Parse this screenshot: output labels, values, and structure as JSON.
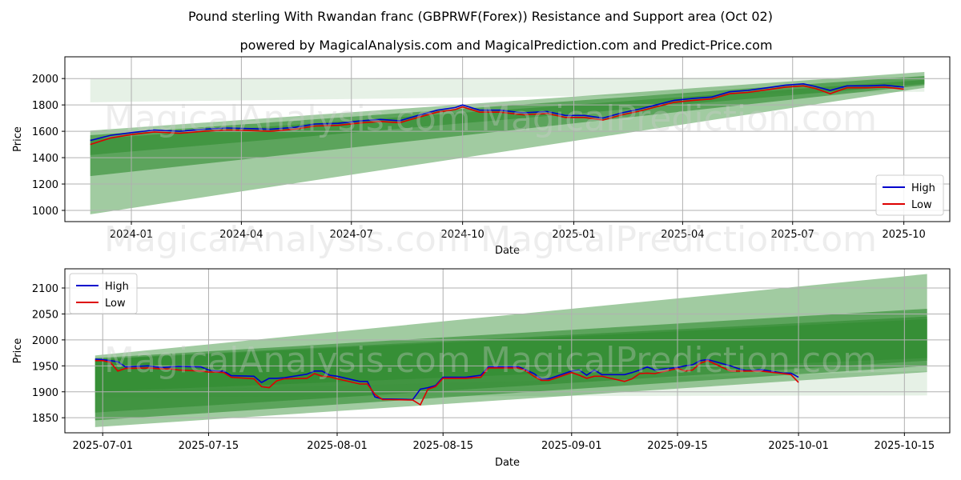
{
  "figure": {
    "title": "Pound sterling With Rwandan franc (GBPRWF(Forex)) Resistance and Support area (Oct 02)",
    "subtitle": "powered by MagicalAnalysis.com and MagicalPrediction.com and Predict-Price.com",
    "watermarks": [
      "MagicalAnalysis.com",
      "MagicalPrediction.com"
    ]
  },
  "colors": {
    "high": "#0000cc",
    "low": "#dd0000",
    "band": "#2e8b2e",
    "grid": "#b0b0b0"
  },
  "chart_data": [
    {
      "type": "line",
      "name": "overview",
      "xlabel": "Date",
      "ylabel": "Price",
      "xlim": [
        "2023-11-07",
        "2025-11-08"
      ],
      "ylim": [
        915,
        2165
      ],
      "xticks": [
        {
          "date": "2024-01-01",
          "label": "2024-01"
        },
        {
          "date": "2024-04-01",
          "label": "2024-04"
        },
        {
          "date": "2024-07-01",
          "label": "2024-07"
        },
        {
          "date": "2024-10-01",
          "label": "2024-10"
        },
        {
          "date": "2025-01-01",
          "label": "2025-01"
        },
        {
          "date": "2025-04-01",
          "label": "2025-04"
        },
        {
          "date": "2025-07-01",
          "label": "2025-07"
        },
        {
          "date": "2025-10-01",
          "label": "2025-10"
        }
      ],
      "yticks": [
        1000,
        1200,
        1400,
        1600,
        1800,
        2000
      ],
      "legend": {
        "position": "lower-right",
        "entries": [
          "High",
          "Low"
        ]
      },
      "bands": [
        {
          "x": [
            "2023-11-28",
            "2025-10-18"
          ],
          "upper": [
            1605,
            2050
          ],
          "lower": [
            970,
            1930
          ],
          "opacity": 0.45
        },
        {
          "x": [
            "2023-11-28",
            "2025-10-18"
          ],
          "upper": [
            1570,
            2020
          ],
          "lower": [
            1260,
            1950
          ],
          "opacity": 0.6
        },
        {
          "x": [
            "2023-11-28",
            "2025-10-18"
          ],
          "upper": [
            1540,
            1990
          ],
          "lower": [
            1420,
            1960
          ],
          "opacity": 0.55
        },
        {
          "x": [
            "2023-11-28",
            "2025-10-18"
          ],
          "upper": [
            2000,
            2010
          ],
          "lower": [
            1820,
            1900
          ],
          "opacity": 0.12
        }
      ],
      "series": [
        {
          "name": "High",
          "x": [
            "2023-11-28",
            "2023-12-15",
            "2024-01-01",
            "2024-01-20",
            "2024-02-10",
            "2024-03-01",
            "2024-03-20",
            "2024-04-10",
            "2024-04-25",
            "2024-05-15",
            "2024-06-01",
            "2024-06-20",
            "2024-07-10",
            "2024-07-25",
            "2024-08-10",
            "2024-08-25",
            "2024-09-10",
            "2024-09-25",
            "2024-10-01",
            "2024-10-15",
            "2024-11-01",
            "2024-11-20",
            "2024-12-10",
            "2024-12-25",
            "2025-01-10",
            "2025-01-25",
            "2025-02-10",
            "2025-02-25",
            "2025-03-10",
            "2025-03-25",
            "2025-04-10",
            "2025-04-25",
            "2025-05-10",
            "2025-05-25",
            "2025-06-10",
            "2025-06-25",
            "2025-07-10",
            "2025-07-20",
            "2025-08-01",
            "2025-08-15",
            "2025-09-01",
            "2025-09-15",
            "2025-10-01"
          ],
          "y": [
            1530,
            1570,
            1590,
            1610,
            1600,
            1615,
            1625,
            1620,
            1615,
            1630,
            1655,
            1660,
            1680,
            1690,
            1680,
            1720,
            1760,
            1780,
            1800,
            1760,
            1760,
            1740,
            1750,
            1720,
            1720,
            1700,
            1740,
            1770,
            1800,
            1835,
            1850,
            1860,
            1900,
            1910,
            1930,
            1950,
            1960,
            1940,
            1910,
            1945,
            1945,
            1950,
            1935
          ]
        },
        {
          "name": "Low",
          "x": [
            "2023-11-28",
            "2023-12-15",
            "2024-01-01",
            "2024-01-20",
            "2024-02-10",
            "2024-03-01",
            "2024-03-20",
            "2024-04-10",
            "2024-04-25",
            "2024-05-15",
            "2024-06-01",
            "2024-06-20",
            "2024-07-10",
            "2024-07-25",
            "2024-08-10",
            "2024-08-25",
            "2024-09-10",
            "2024-09-25",
            "2024-10-01",
            "2024-10-15",
            "2024-11-01",
            "2024-11-20",
            "2024-12-10",
            "2024-12-25",
            "2025-01-10",
            "2025-01-25",
            "2025-02-10",
            "2025-02-25",
            "2025-03-10",
            "2025-03-25",
            "2025-04-10",
            "2025-04-25",
            "2025-05-10",
            "2025-05-25",
            "2025-06-10",
            "2025-06-25",
            "2025-07-10",
            "2025-07-20",
            "2025-08-01",
            "2025-08-15",
            "2025-09-01",
            "2025-09-15",
            "2025-10-01"
          ],
          "y": [
            1500,
            1550,
            1575,
            1595,
            1585,
            1600,
            1610,
            1605,
            1600,
            1615,
            1640,
            1645,
            1665,
            1675,
            1665,
            1705,
            1745,
            1765,
            1785,
            1745,
            1745,
            1725,
            1735,
            1705,
            1705,
            1685,
            1725,
            1755,
            1785,
            1820,
            1835,
            1845,
            1885,
            1895,
            1915,
            1935,
            1945,
            1925,
            1885,
            1930,
            1930,
            1935,
            1920
          ]
        }
      ]
    },
    {
      "type": "line",
      "name": "detail",
      "xlabel": "Date",
      "ylabel": "Price",
      "xlim": [
        "2025-06-26",
        "2025-10-21"
      ],
      "ylim": [
        1821,
        2137
      ],
      "xticks": [
        {
          "date": "2025-07-01",
          "label": "2025-07-01"
        },
        {
          "date": "2025-07-15",
          "label": "2025-07-15"
        },
        {
          "date": "2025-08-01",
          "label": "2025-08-01"
        },
        {
          "date": "2025-08-15",
          "label": "2025-08-15"
        },
        {
          "date": "2025-09-01",
          "label": "2025-09-01"
        },
        {
          "date": "2025-09-15",
          "label": "2025-09-15"
        },
        {
          "date": "2025-10-01",
          "label": "2025-10-01"
        },
        {
          "date": "2025-10-15",
          "label": "2025-10-15"
        }
      ],
      "yticks": [
        1850,
        1900,
        1950,
        2000,
        2050,
        2100
      ],
      "legend": {
        "position": "upper-left",
        "entries": [
          "High",
          "Low"
        ]
      },
      "bands": [
        {
          "x": [
            "2025-06-30",
            "2025-10-18"
          ],
          "upper": [
            1970,
            2127
          ],
          "lower": [
            1832,
            1938
          ],
          "opacity": 0.45
        },
        {
          "x": [
            "2025-06-30",
            "2025-10-18"
          ],
          "upper": [
            1965,
            2060
          ],
          "lower": [
            1845,
            1950
          ],
          "opacity": 0.6
        },
        {
          "x": [
            "2025-06-30",
            "2025-10-18"
          ],
          "upper": [
            1963,
            2045
          ],
          "lower": [
            1860,
            1960
          ],
          "opacity": 0.6
        },
        {
          "x": [
            "2025-06-30",
            "2025-10-18"
          ],
          "upper": [
            1962,
            2040
          ],
          "lower": [
            1900,
            1965
          ],
          "opacity": 0.55
        },
        {
          "x": [
            "2025-06-30",
            "2025-10-18"
          ],
          "upper": [
            1900,
            1940
          ],
          "lower": [
            1890,
            1893
          ],
          "opacity": 0.12
        }
      ],
      "series": [
        {
          "name": "High",
          "x": [
            "2025-06-30",
            "2025-07-01",
            "2025-07-02",
            "2025-07-03",
            "2025-07-04",
            "2025-07-07",
            "2025-07-08",
            "2025-07-09",
            "2025-07-10",
            "2025-07-11",
            "2025-07-14",
            "2025-07-15",
            "2025-07-16",
            "2025-07-17",
            "2025-07-18",
            "2025-07-21",
            "2025-07-22",
            "2025-07-23",
            "2025-07-24",
            "2025-07-25",
            "2025-07-28",
            "2025-07-29",
            "2025-07-30",
            "2025-07-31",
            "2025-08-01",
            "2025-08-04",
            "2025-08-05",
            "2025-08-06",
            "2025-08-07",
            "2025-08-08",
            "2025-08-11",
            "2025-08-12",
            "2025-08-13",
            "2025-08-14",
            "2025-08-15",
            "2025-08-18",
            "2025-08-19",
            "2025-08-20",
            "2025-08-21",
            "2025-08-22",
            "2025-08-25",
            "2025-08-26",
            "2025-08-27",
            "2025-08-28",
            "2025-08-29",
            "2025-09-01",
            "2025-09-02",
            "2025-09-03",
            "2025-09-04",
            "2025-09-05",
            "2025-09-08",
            "2025-09-09",
            "2025-09-10",
            "2025-09-11",
            "2025-09-12",
            "2025-09-15",
            "2025-09-16",
            "2025-09-17",
            "2025-09-18",
            "2025-09-19",
            "2025-09-22",
            "2025-09-23",
            "2025-09-24",
            "2025-09-25",
            "2025-09-26",
            "2025-09-29",
            "2025-09-30",
            "2025-10-01"
          ],
          "y": [
            1963,
            1962,
            1960,
            1958,
            1948,
            1950,
            1948,
            1947,
            1948,
            1949,
            1948,
            1942,
            1940,
            1940,
            1931,
            1930,
            1918,
            1926,
            1926,
            1927,
            1934,
            1940,
            1940,
            1932,
            1930,
            1920,
            1920,
            1890,
            1886,
            1886,
            1885,
            1905,
            1908,
            1912,
            1928,
            1928,
            1930,
            1932,
            1948,
            1948,
            1948,
            1942,
            1935,
            1925,
            1925,
            1940,
            1942,
            1932,
            1942,
            1933,
            1933,
            1937,
            1942,
            1948,
            1942,
            1947,
            1950,
            1952,
            1960,
            1962,
            1950,
            1945,
            1941,
            1941,
            1943,
            1936,
            1936,
            1928
          ]
        },
        {
          "name": "Low",
          "x": [
            "2025-06-30",
            "2025-07-01",
            "2025-07-02",
            "2025-07-03",
            "2025-07-04",
            "2025-07-07",
            "2025-07-08",
            "2025-07-09",
            "2025-07-10",
            "2025-07-11",
            "2025-07-14",
            "2025-07-15",
            "2025-07-16",
            "2025-07-17",
            "2025-07-18",
            "2025-07-21",
            "2025-07-22",
            "2025-07-23",
            "2025-07-24",
            "2025-07-25",
            "2025-07-28",
            "2025-07-29",
            "2025-07-30",
            "2025-07-31",
            "2025-08-01",
            "2025-08-04",
            "2025-08-05",
            "2025-08-06",
            "2025-08-07",
            "2025-08-08",
            "2025-08-11",
            "2025-08-12",
            "2025-08-13",
            "2025-08-14",
            "2025-08-15",
            "2025-08-18",
            "2025-08-19",
            "2025-08-20",
            "2025-08-21",
            "2025-08-22",
            "2025-08-25",
            "2025-08-26",
            "2025-08-27",
            "2025-08-28",
            "2025-08-29",
            "2025-09-01",
            "2025-09-02",
            "2025-09-03",
            "2025-09-04",
            "2025-09-05",
            "2025-09-08",
            "2025-09-09",
            "2025-09-10",
            "2025-09-11",
            "2025-09-12",
            "2025-09-15",
            "2025-09-16",
            "2025-09-17",
            "2025-09-18",
            "2025-09-19",
            "2025-09-22",
            "2025-09-23",
            "2025-09-24",
            "2025-09-25",
            "2025-09-26",
            "2025-09-29",
            "2025-09-30",
            "2025-10-01"
          ],
          "y": [
            1960,
            1960,
            1957,
            1940,
            1945,
            1946,
            1945,
            1944,
            1944,
            1942,
            1940,
            1938,
            1938,
            1937,
            1928,
            1925,
            1910,
            1908,
            1921,
            1925,
            1926,
            1935,
            1930,
            1929,
            1925,
            1915,
            1915,
            1895,
            1885,
            1885,
            1884,
            1875,
            1905,
            1910,
            1926,
            1926,
            1927,
            1928,
            1946,
            1946,
            1946,
            1940,
            1930,
            1922,
            1922,
            1937,
            1932,
            1926,
            1930,
            1930,
            1920,
            1925,
            1935,
            1936,
            1935,
            1945,
            1940,
            1942,
            1955,
            1960,
            1940,
            1940,
            1940,
            1940,
            1940,
            1935,
            1933,
            1918
          ]
        }
      ]
    }
  ]
}
